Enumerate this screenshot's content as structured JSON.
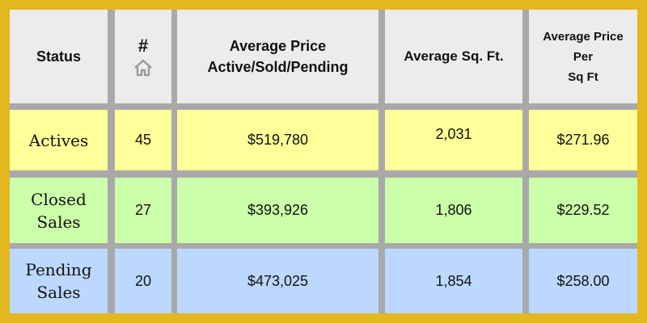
{
  "table": {
    "headers": {
      "status": "Status",
      "count": "#",
      "avg_price_line1": "Average Price",
      "avg_price_line2": "Active/Sold/Pending",
      "avg_sqft": "Average Sq. Ft.",
      "price_per_line1": "Average Price",
      "price_per_line2": "Per",
      "price_per_line3": "Sq Ft"
    },
    "header_icon": "home-icon",
    "rows": [
      {
        "status_line1": "Actives",
        "status_line2": "",
        "count": "45",
        "avg_price": "$519,780",
        "avg_sqft": "2,031",
        "price_per_sqft": "$271.96",
        "color": "#ffff99"
      },
      {
        "status_line1": "Closed",
        "status_line2": "Sales",
        "count": "27",
        "avg_price": "$393,926",
        "avg_sqft": "1,806",
        "price_per_sqft": "$229.52",
        "color": "#ccffaa"
      },
      {
        "status_line1": "Pending",
        "status_line2": "Sales",
        "count": "20",
        "avg_price": "$473,025",
        "avg_sqft": "1,854",
        "price_per_sqft": "$258.00",
        "color": "#bcd8ff"
      }
    ],
    "colors": {
      "frame": "#e3b71f",
      "grid": "#a9a9a9",
      "header": "#ececec"
    }
  }
}
